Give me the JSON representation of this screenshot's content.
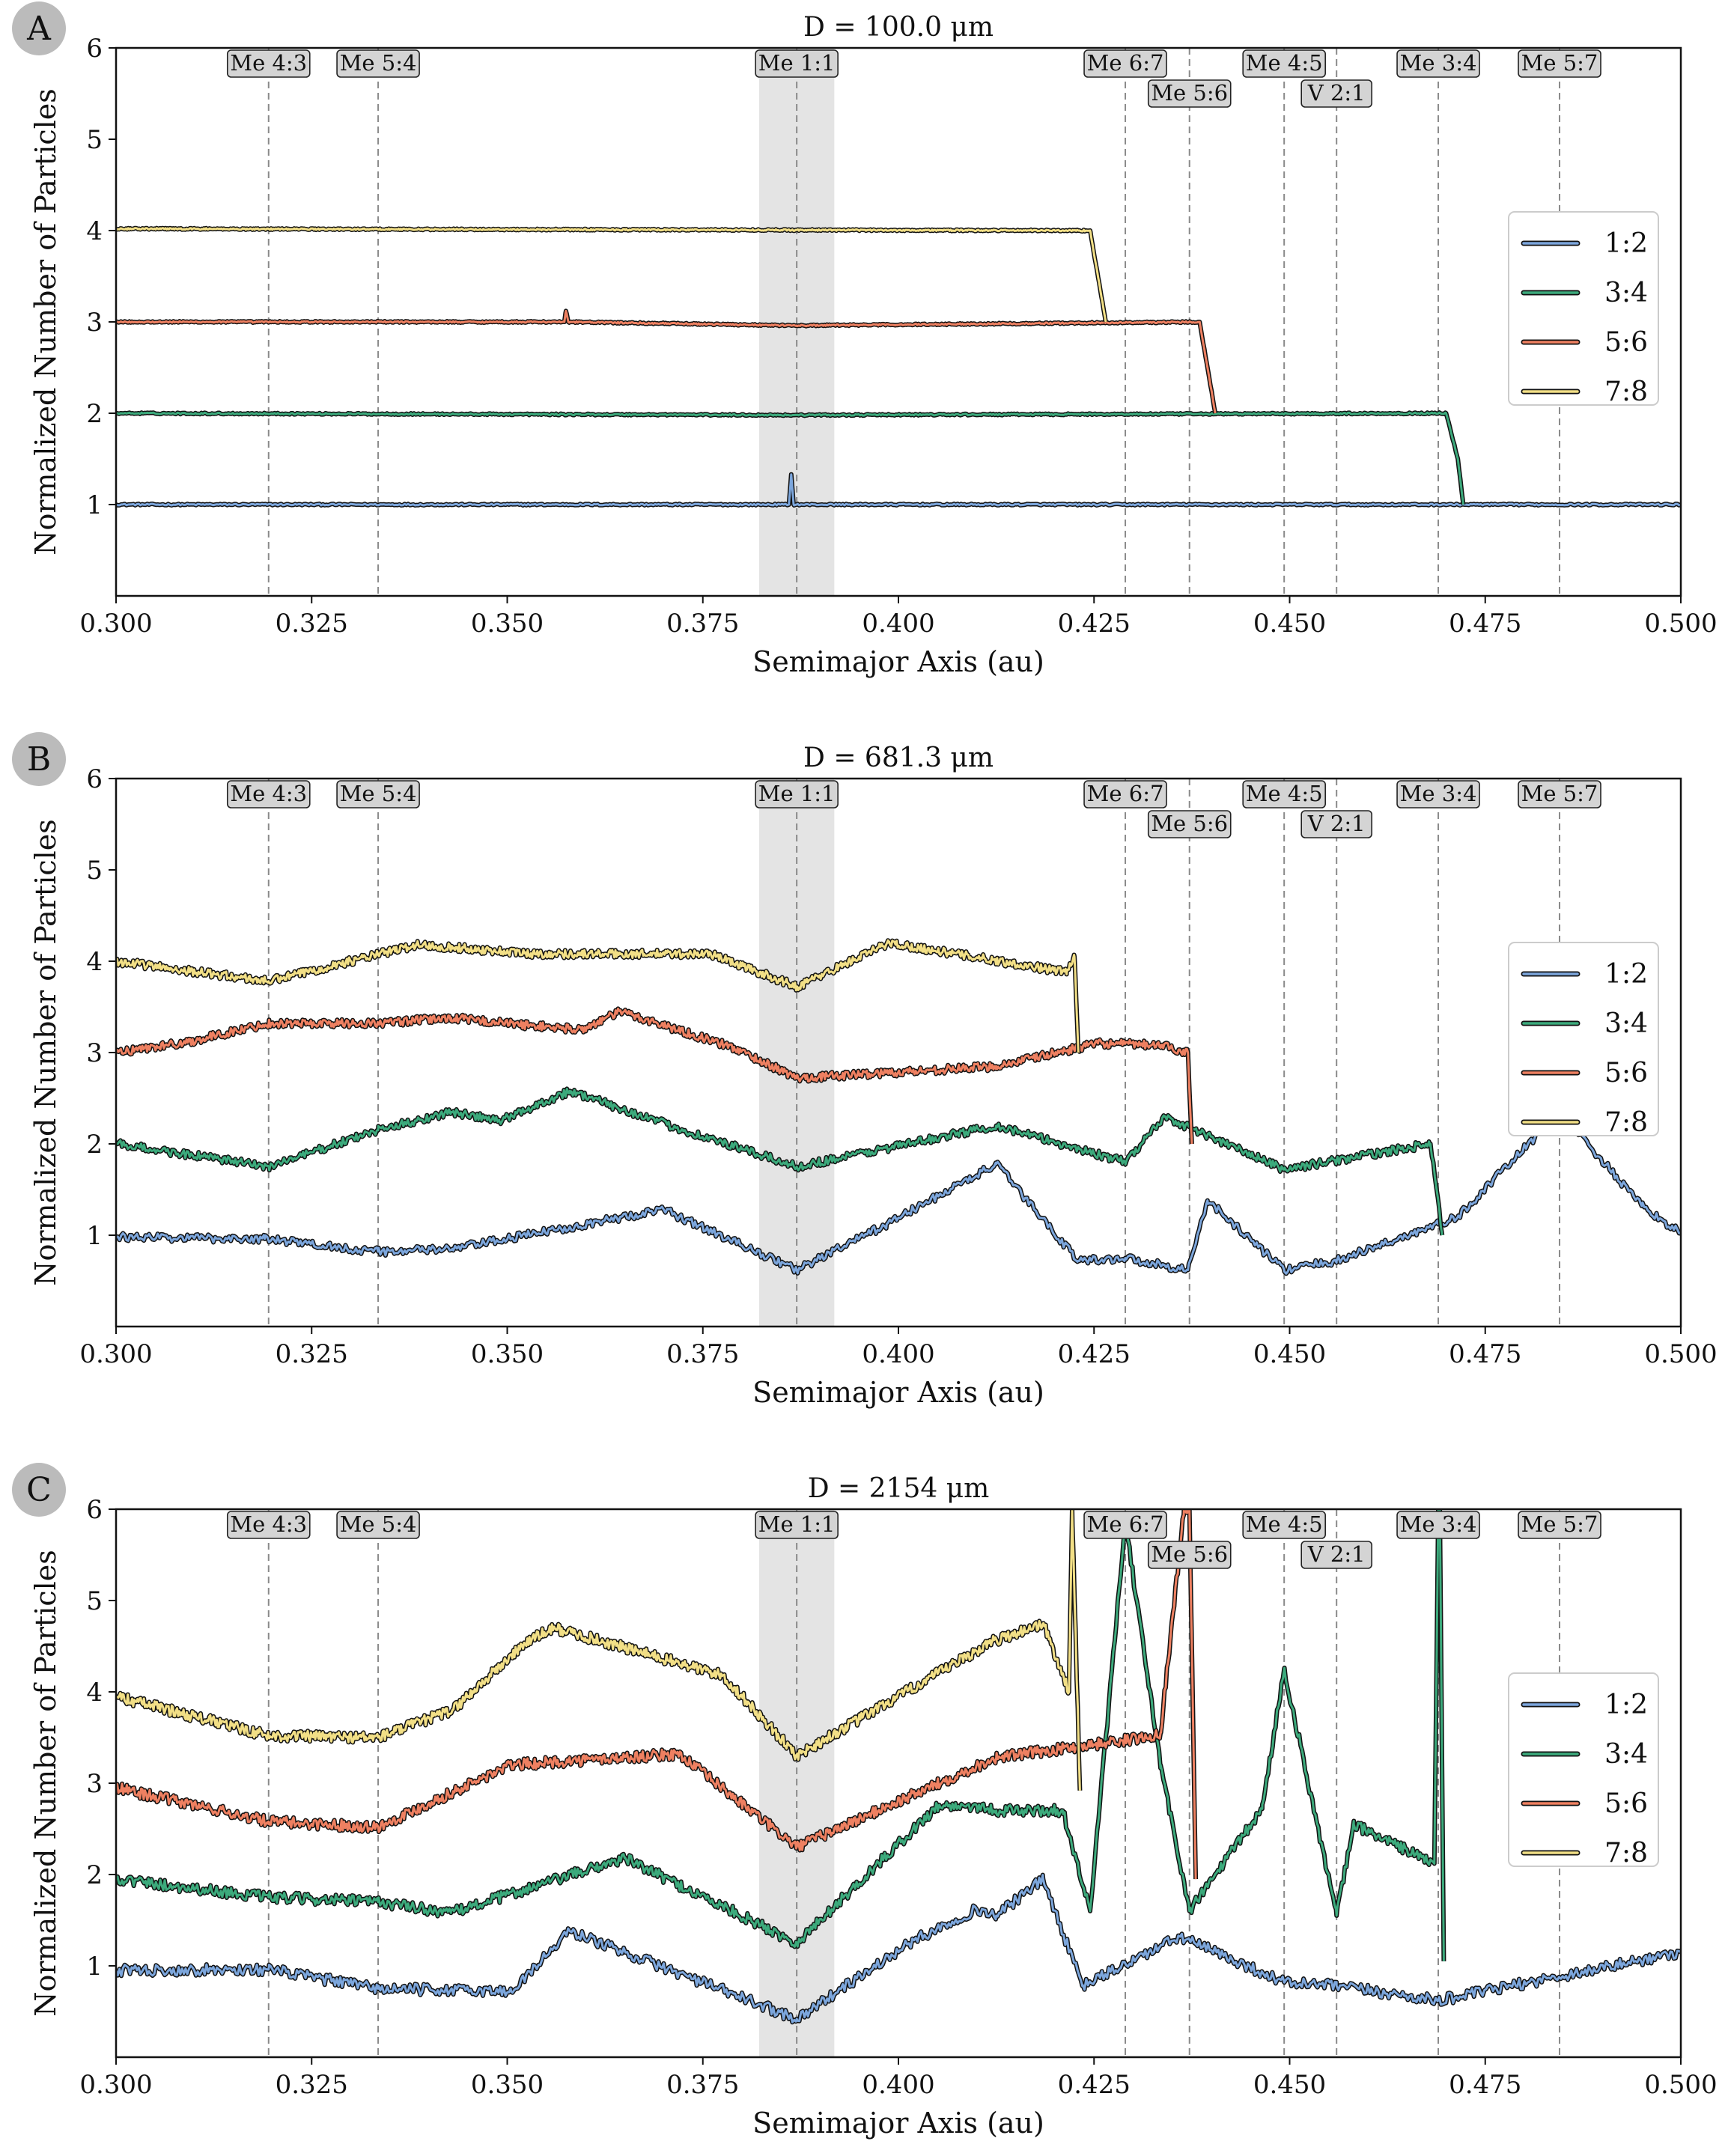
{
  "chart_data": [
    {
      "type": "line",
      "panel_letter": "A",
      "title": "D = 100.0 μm",
      "xlabel": "Semimajor Axis (au)",
      "ylabel": "Normalized Number of Particles",
      "xlim": [
        0.3,
        0.5
      ],
      "ylim": [
        0,
        6
      ],
      "xticks": [
        "0.300",
        "0.325",
        "0.350",
        "0.375",
        "0.400",
        "0.425",
        "0.450",
        "0.475",
        "0.500"
      ],
      "yticks": [
        "1",
        "2",
        "3",
        "4",
        "5",
        "6"
      ],
      "grid": false,
      "legend_position": "right",
      "shaded_band": [
        0.3822,
        0.3918
      ],
      "series": [
        {
          "name": "1:2",
          "color": "#7ca6dc",
          "x": [
            0.3,
            0.386,
            0.3863,
            0.3866,
            0.387,
            0.5
          ],
          "values": [
            1.0,
            1.0,
            1.33,
            1.0,
            1.0,
            1.0
          ]
        },
        {
          "name": "3:4",
          "color": "#3caa7c",
          "x": [
            0.3,
            0.387,
            0.47,
            0.4715,
            0.4722
          ],
          "values": [
            2.0,
            1.98,
            2.0,
            1.5,
            1.0
          ]
        },
        {
          "name": "5:6",
          "color": "#ee8061",
          "x": [
            0.3,
            0.3573,
            0.3575,
            0.3578,
            0.387,
            0.4385,
            0.4395,
            0.4405
          ],
          "values": [
            3.0,
            3.0,
            3.12,
            3.0,
            2.96,
            3.0,
            2.5,
            2.0
          ]
        },
        {
          "name": "7:8",
          "color": "#f2df86",
          "x": [
            0.3,
            0.4245,
            0.4255,
            0.4265
          ],
          "values": [
            4.02,
            4.0,
            3.5,
            3.0
          ]
        }
      ]
    },
    {
      "type": "line",
      "panel_letter": "B",
      "title": "D = 681.3 μm",
      "xlabel": "Semimajor Axis (au)",
      "ylabel": "Normalized Number of Particles",
      "xlim": [
        0.3,
        0.5
      ],
      "ylim": [
        0,
        6
      ],
      "xticks": [
        "0.300",
        "0.325",
        "0.350",
        "0.375",
        "0.400",
        "0.425",
        "0.450",
        "0.475",
        "0.500"
      ],
      "yticks": [
        "1",
        "2",
        "3",
        "4",
        "5",
        "6"
      ],
      "grid": false,
      "legend_position": "right",
      "shaded_band": [
        0.3822,
        0.3918
      ],
      "series": [
        {
          "name": "1:2",
          "color": "#7ca6dc",
          "x": [
            0.3,
            0.319,
            0.3335,
            0.343,
            0.37,
            0.387,
            0.3985,
            0.4125,
            0.423,
            0.429,
            0.437,
            0.4395,
            0.4493,
            0.456,
            0.469,
            0.4715,
            0.4845,
            0.495,
            0.5
          ],
          "values": [
            0.98,
            0.96,
            0.82,
            0.85,
            1.28,
            0.62,
            1.12,
            1.78,
            0.72,
            0.75,
            0.62,
            1.38,
            0.62,
            0.72,
            1.12,
            1.2,
            2.35,
            1.32,
            1.02
          ]
        },
        {
          "name": "3:4",
          "color": "#3caa7c",
          "x": [
            0.3,
            0.3195,
            0.3335,
            0.3428,
            0.349,
            0.358,
            0.3725,
            0.387,
            0.4125,
            0.429,
            0.434,
            0.4493,
            0.456,
            0.468,
            0.4695
          ],
          "values": [
            2.0,
            1.75,
            2.15,
            2.35,
            2.25,
            2.58,
            2.15,
            1.75,
            2.2,
            1.8,
            2.3,
            1.72,
            1.82,
            2.0,
            1.0
          ]
        },
        {
          "name": "5:6",
          "color": "#ee8061",
          "x": [
            0.3,
            0.3095,
            0.3195,
            0.3335,
            0.3428,
            0.3525,
            0.3595,
            0.3645,
            0.379,
            0.387,
            0.4125,
            0.4255,
            0.4335,
            0.437,
            0.4375
          ],
          "values": [
            3.0,
            3.12,
            3.32,
            3.32,
            3.38,
            3.3,
            3.25,
            3.45,
            3.05,
            2.72,
            2.85,
            3.1,
            3.08,
            3.0,
            2.0
          ]
        },
        {
          "name": "7:8",
          "color": "#f2df86",
          "x": [
            0.3,
            0.3195,
            0.3385,
            0.3535,
            0.376,
            0.387,
            0.3988,
            0.4215,
            0.4225,
            0.423
          ],
          "values": [
            4.0,
            3.78,
            4.18,
            4.08,
            4.08,
            3.72,
            4.2,
            3.88,
            4.05,
            3.0
          ]
        }
      ]
    },
    {
      "type": "line",
      "panel_letter": "C",
      "title": "D = 2154 μm",
      "xlabel": "Semimajor Axis (au)",
      "ylabel": "Normalized Number of Particles",
      "xlim": [
        0.3,
        0.5
      ],
      "ylim": [
        0,
        6
      ],
      "xticks": [
        "0.300",
        "0.325",
        "0.350",
        "0.375",
        "0.400",
        "0.425",
        "0.450",
        "0.475",
        "0.500"
      ],
      "yticks": [
        "1",
        "2",
        "3",
        "4",
        "5",
        "6"
      ],
      "grid": false,
      "legend_position": "right",
      "shaded_band": [
        0.3822,
        0.3918
      ],
      "series": [
        {
          "name": "1:2",
          "color": "#7ca6dc",
          "x": [
            0.3,
            0.3195,
            0.3335,
            0.3505,
            0.358,
            0.387,
            0.402,
            0.41,
            0.4125,
            0.4185,
            0.4235,
            0.436,
            0.4493,
            0.456,
            0.469,
            0.5
          ],
          "values": [
            0.95,
            0.96,
            0.75,
            0.72,
            1.38,
            0.42,
            1.28,
            1.62,
            1.55,
            1.95,
            0.78,
            1.32,
            0.82,
            0.78,
            0.62,
            1.15
          ]
        },
        {
          "name": "3:4",
          "color": "#3caa7c",
          "x": [
            0.3,
            0.3195,
            0.3335,
            0.3428,
            0.365,
            0.387,
            0.405,
            0.41,
            0.4125,
            0.421,
            0.4245,
            0.429,
            0.4335,
            0.4372,
            0.4465,
            0.4493,
            0.456,
            0.4582,
            0.4685,
            0.469,
            0.4692,
            0.4697
          ],
          "values": [
            1.95,
            1.75,
            1.7,
            1.58,
            2.18,
            1.25,
            2.75,
            2.75,
            2.7,
            2.7,
            1.6,
            5.85,
            3.2,
            1.6,
            2.72,
            4.25,
            1.55,
            2.55,
            2.12,
            6.0,
            6.0,
            1.05
          ]
        },
        {
          "name": "5:6",
          "color": "#ee8061",
          "x": [
            0.3,
            0.3195,
            0.3335,
            0.3505,
            0.372,
            0.387,
            0.4125,
            0.4315,
            0.4335,
            0.4365,
            0.4368,
            0.4372,
            0.438
          ],
          "values": [
            2.95,
            2.58,
            2.52,
            3.2,
            3.32,
            2.3,
            3.28,
            3.5,
            3.55,
            6.0,
            6.0,
            6.0,
            1.95
          ]
        },
        {
          "name": "7:8",
          "color": "#f2df86",
          "x": [
            0.3,
            0.3195,
            0.3335,
            0.343,
            0.3525,
            0.356,
            0.3775,
            0.387,
            0.412,
            0.4185,
            0.4218,
            0.4222,
            0.4232
          ],
          "values": [
            3.95,
            3.52,
            3.5,
            3.8,
            4.55,
            4.7,
            4.18,
            3.3,
            4.55,
            4.75,
            4.0,
            6.0,
            2.92
          ]
        }
      ]
    }
  ],
  "resonance_labels": [
    {
      "label": "Me 4:3",
      "x": 0.3195,
      "row": 0
    },
    {
      "label": "Me 5:4",
      "x": 0.3335,
      "row": 0
    },
    {
      "label": "Me 1:1",
      "x": 0.387,
      "row": 0
    },
    {
      "label": "Me 6:7",
      "x": 0.429,
      "row": 0
    },
    {
      "label": "Me 5:6",
      "x": 0.4372,
      "row": 1
    },
    {
      "label": "Me 4:5",
      "x": 0.4493,
      "row": 0
    },
    {
      "label": "V 2:1",
      "x": 0.456,
      "row": 1
    },
    {
      "label": "Me 3:4",
      "x": 0.469,
      "row": 0
    },
    {
      "label": "Me 5:7",
      "x": 0.4845,
      "row": 0
    }
  ]
}
